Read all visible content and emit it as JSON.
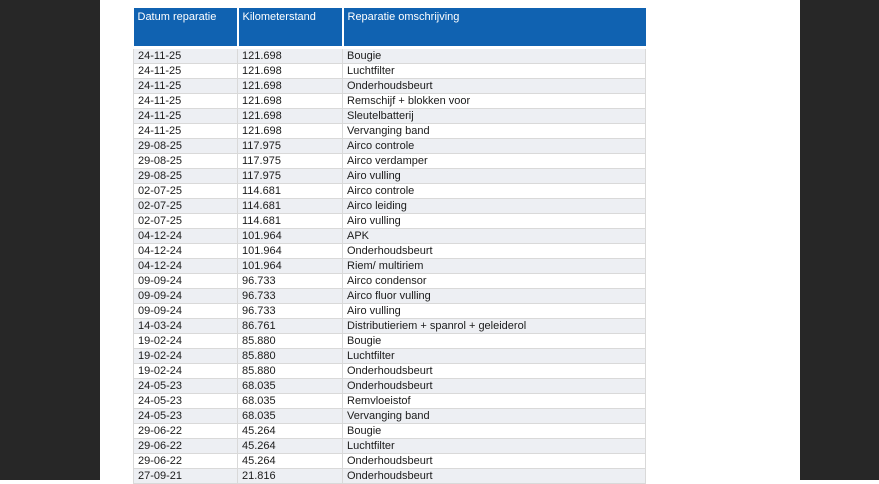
{
  "page": {
    "background_color": "#ffffff",
    "letterbox_color": "#272727"
  },
  "table": {
    "header_bg_color": "#1062b1",
    "header_text_color": "#ffffff",
    "alt_row_color": "#edeff3",
    "columns": [
      {
        "key": "datum",
        "label": "Datum reparatie"
      },
      {
        "key": "kilometerstand",
        "label": "Kilometerstand"
      },
      {
        "key": "omschrijving",
        "label": "Reparatie omschrijving"
      }
    ],
    "rows": [
      [
        "24-11-25",
        "121.698",
        "Bougie"
      ],
      [
        "24-11-25",
        "121.698",
        "Luchtfilter"
      ],
      [
        "24-11-25",
        "121.698",
        "Onderhoudsbeurt"
      ],
      [
        "24-11-25",
        "121.698",
        "Remschijf + blokken voor"
      ],
      [
        "24-11-25",
        "121.698",
        "Sleutelbatterij"
      ],
      [
        "24-11-25",
        "121.698",
        "Vervanging band"
      ],
      [
        "29-08-25",
        "117.975",
        "Airco controle"
      ],
      [
        "29-08-25",
        "117.975",
        "Airco verdamper"
      ],
      [
        "29-08-25",
        "117.975",
        "Airo vulling"
      ],
      [
        "02-07-25",
        "114.681",
        "Airco controle"
      ],
      [
        "02-07-25",
        "114.681",
        "Airco leiding"
      ],
      [
        "02-07-25",
        "114.681",
        "Airo vulling"
      ],
      [
        "04-12-24",
        "101.964",
        "APK"
      ],
      [
        "04-12-24",
        "101.964",
        "Onderhoudsbeurt"
      ],
      [
        "04-12-24",
        "101.964",
        "Riem/ multiriem"
      ],
      [
        "09-09-24",
        "96.733",
        "Airco condensor"
      ],
      [
        "09-09-24",
        "96.733",
        "Airco fluor vulling"
      ],
      [
        "09-09-24",
        "96.733",
        "Airo vulling"
      ],
      [
        "14-03-24",
        "86.761",
        "Distributieriem + spanrol + geleiderol"
      ],
      [
        "19-02-24",
        "85.880",
        "Bougie"
      ],
      [
        "19-02-24",
        "85.880",
        "Luchtfilter"
      ],
      [
        "19-02-24",
        "85.880",
        "Onderhoudsbeurt"
      ],
      [
        "24-05-23",
        "68.035",
        "Onderhoudsbeurt"
      ],
      [
        "24-05-23",
        "68.035",
        "Remvloeistof"
      ],
      [
        "24-05-23",
        "68.035",
        "Vervanging band"
      ],
      [
        "29-06-22",
        "45.264",
        "Bougie"
      ],
      [
        "29-06-22",
        "45.264",
        "Luchtfilter"
      ],
      [
        "29-06-22",
        "45.264",
        "Onderhoudsbeurt"
      ],
      [
        "27-09-21",
        "21.816",
        "Onderhoudsbeurt"
      ]
    ]
  }
}
